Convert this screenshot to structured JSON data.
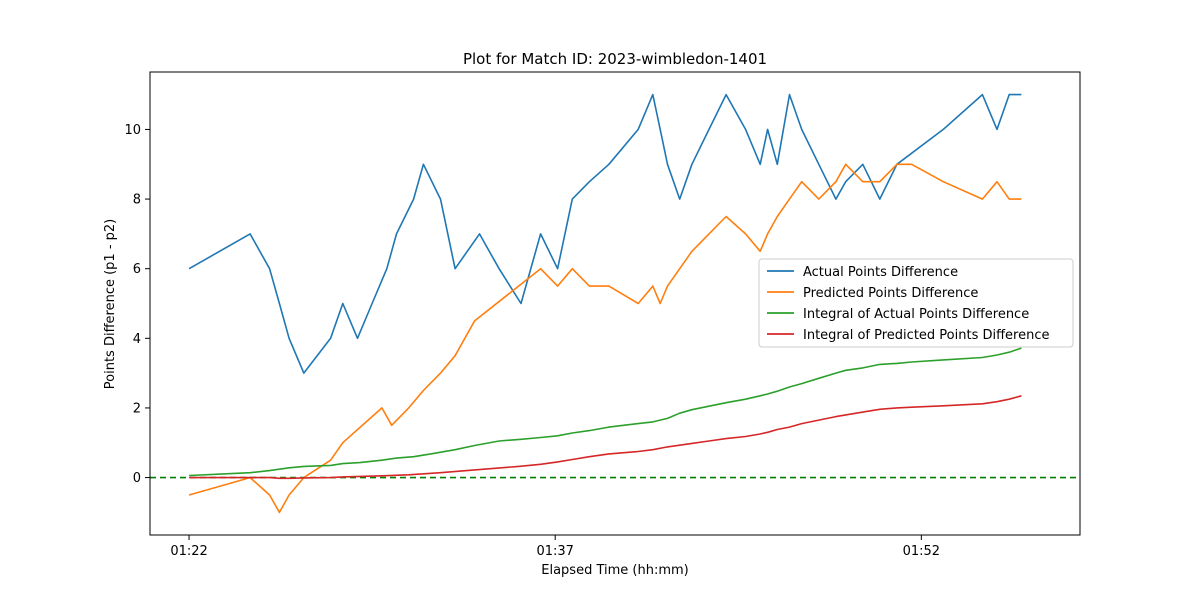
{
  "chart_data": {
    "type": "line",
    "title": "Plot for Match ID: 2023-wimbledon-1401",
    "xlabel": "Elapsed Time (hh:mm)",
    "ylabel": "Points Difference (p1 - p2)",
    "xlim": [
      80.4,
      118.5
    ],
    "ylim": [
      -1.65,
      11.65
    ],
    "x_ticks": [
      {
        "value": 82,
        "label": "01:22"
      },
      {
        "value": 97,
        "label": "01:37"
      },
      {
        "value": 112,
        "label": "01:52"
      }
    ],
    "y_ticks": [
      {
        "value": 0,
        "label": "0"
      },
      {
        "value": 2,
        "label": "2"
      },
      {
        "value": 4,
        "label": "4"
      },
      {
        "value": 6,
        "label": "6"
      },
      {
        "value": 8,
        "label": "8"
      },
      {
        "value": 10,
        "label": "10"
      }
    ],
    "zero_line": {
      "value": 0,
      "color": "#008000",
      "style": "dashed"
    },
    "legend_position": "center-right",
    "series": [
      {
        "name": "Actual Points Difference",
        "color": "#1f77b4",
        "x": [
          82.0,
          84.5,
          85.3,
          85.7,
          86.1,
          86.7,
          87.8,
          88.3,
          88.9,
          89.5,
          90.1,
          90.5,
          91.2,
          91.6,
          92.3,
          92.9,
          93.9,
          94.7,
          95.6,
          96.4,
          97.1,
          97.7,
          98.4,
          99.2,
          100.4,
          101.0,
          101.3,
          101.6,
          102.1,
          102.6,
          103.3,
          104.0,
          104.8,
          105.4,
          105.7,
          106.1,
          106.6,
          107.1,
          107.8,
          108.5,
          108.9,
          109.6,
          110.3,
          111.0,
          112.9,
          114.5,
          115.1,
          115.6,
          116.1
        ],
        "y": [
          6,
          7,
          6,
          5,
          4,
          3,
          4,
          5,
          4,
          5,
          6,
          7,
          8,
          9,
          8,
          6,
          7,
          6,
          5,
          7,
          6,
          8,
          8.5,
          9,
          10,
          11,
          10,
          9,
          8,
          9,
          10,
          11,
          10,
          9,
          10,
          9,
          11,
          10,
          9,
          8,
          8.5,
          9,
          8,
          9,
          10,
          11,
          10,
          11,
          11
        ]
      },
      {
        "name": "Predicted Points Difference",
        "color": "#ff7f0e",
        "x": [
          82.0,
          84.5,
          85.3,
          85.7,
          86.1,
          86.7,
          87.8,
          88.3,
          89.9,
          90.3,
          91.0,
          91.6,
          92.3,
          92.9,
          93.7,
          95.5,
          96.4,
          97.1,
          97.7,
          98.4,
          99.2,
          100.4,
          101.0,
          101.3,
          101.6,
          102.1,
          102.6,
          103.3,
          104.0,
          104.8,
          105.4,
          105.7,
          106.1,
          106.6,
          107.1,
          107.8,
          108.5,
          108.9,
          109.6,
          110.3,
          111.0,
          111.6,
          112.9,
          114.5,
          115.1,
          115.6,
          116.1
        ],
        "y": [
          -0.5,
          0,
          -0.5,
          -1,
          -0.5,
          0,
          0.5,
          1,
          2,
          1.5,
          2,
          2.5,
          3,
          3.5,
          4.5,
          5.5,
          6,
          5.5,
          6,
          5.5,
          5.5,
          5,
          5.5,
          5,
          5.5,
          6,
          6.5,
          7,
          7.5,
          7,
          6.5,
          7,
          7.5,
          8,
          8.5,
          8,
          8.5,
          9,
          8.5,
          8.5,
          9,
          9,
          8.5,
          8,
          8.5,
          8,
          8
        ]
      },
      {
        "name": "Integral of Actual Points Difference",
        "color": "#2ca02c",
        "x": [
          82.0,
          83.3,
          84.5,
          85.3,
          86.1,
          86.7,
          87.8,
          88.3,
          89.0,
          89.9,
          90.5,
          91.2,
          91.9,
          92.9,
          93.7,
          94.7,
          95.6,
          96.4,
          97.1,
          97.7,
          98.4,
          99.2,
          100.4,
          101.0,
          101.3,
          101.6,
          102.1,
          102.6,
          103.3,
          104.0,
          104.8,
          105.4,
          105.7,
          106.1,
          106.6,
          107.1,
          107.8,
          108.5,
          108.9,
          109.6,
          110.3,
          111.0,
          111.6,
          112.9,
          114.5,
          115.1,
          115.6,
          116.1
        ],
        "y": [
          0.06,
          0.1,
          0.14,
          0.2,
          0.28,
          0.32,
          0.35,
          0.4,
          0.43,
          0.5,
          0.56,
          0.6,
          0.68,
          0.8,
          0.92,
          1.05,
          1.1,
          1.15,
          1.2,
          1.28,
          1.35,
          1.45,
          1.55,
          1.6,
          1.65,
          1.7,
          1.85,
          1.95,
          2.05,
          2.15,
          2.25,
          2.35,
          2.4,
          2.48,
          2.6,
          2.7,
          2.85,
          3.0,
          3.08,
          3.15,
          3.25,
          3.28,
          3.32,
          3.38,
          3.45,
          3.52,
          3.6,
          3.72
        ]
      },
      {
        "name": "Integral of Predicted Points Difference",
        "color": "#d62728",
        "x": [
          82.0,
          84.5,
          85.3,
          85.7,
          86.1,
          86.7,
          87.8,
          88.3,
          89.9,
          91.0,
          92.3,
          93.7,
          95.5,
          96.4,
          97.1,
          97.7,
          98.4,
          99.2,
          100.4,
          101.0,
          101.6,
          102.6,
          103.3,
          104.0,
          104.8,
          105.4,
          105.7,
          106.1,
          106.6,
          107.1,
          107.8,
          108.5,
          108.9,
          109.6,
          110.3,
          111.0,
          111.6,
          112.9,
          114.5,
          115.1,
          115.6,
          116.1
        ],
        "y": [
          0.0,
          0.0,
          0.0,
          -0.02,
          -0.02,
          -0.01,
          0.0,
          0.02,
          0.05,
          0.08,
          0.14,
          0.22,
          0.32,
          0.38,
          0.45,
          0.52,
          0.6,
          0.68,
          0.75,
          0.8,
          0.88,
          0.98,
          1.05,
          1.12,
          1.18,
          1.25,
          1.3,
          1.38,
          1.45,
          1.55,
          1.65,
          1.75,
          1.8,
          1.88,
          1.96,
          2.0,
          2.02,
          2.06,
          2.12,
          2.18,
          2.25,
          2.35
        ]
      }
    ]
  }
}
